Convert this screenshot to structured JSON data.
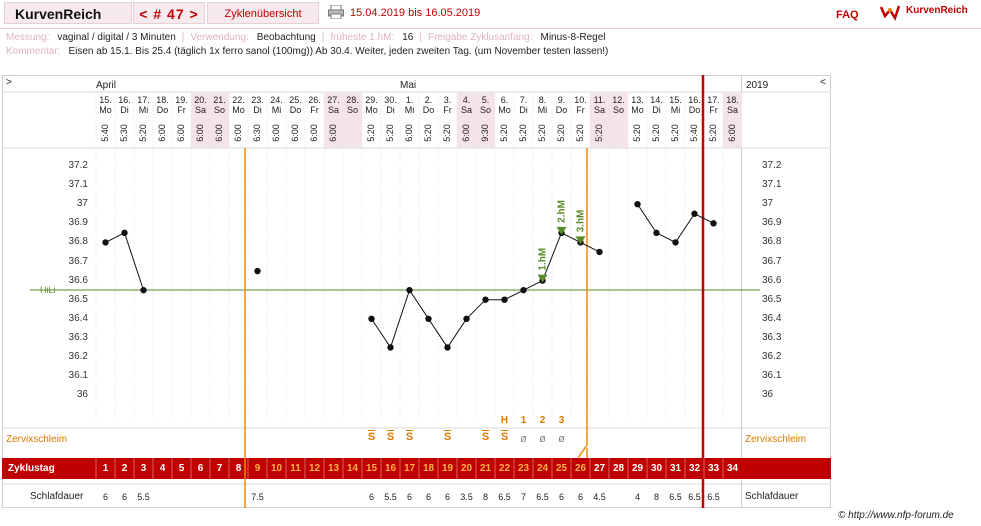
{
  "header": {
    "brand": "KurvenReich",
    "nav": "< # 47 >",
    "overview": "Zyklenübersicht",
    "date_range": "15.04.2019 bis 16.05.2019",
    "faq": "FAQ",
    "logo_text": "KurvenReich"
  },
  "info": {
    "messung_label": "Messung:",
    "messung_value": "vaginal / digital / 3 Minuten",
    "verwendung_label": "Verwendung:",
    "verwendung_value": "Beobachtung",
    "fhm_label": "früheste 1.hM:",
    "fhm_value": "16",
    "freigabe_label": "Freigabe Zyklusanfang:",
    "freigabe_value": "Minus-8-Regel",
    "kommentar_label": "Kommentar:",
    "kommentar_value": "Eisen ab 15.1. Bis 25.4 (täglich 1x ferro sanol (100mg)) Ab 30.4. Weiter, jeden zweiten Tag. (um November testen lassen!)"
  },
  "chart": {
    "nav_left": ">",
    "nav_right": "<",
    "month_april": "April",
    "month_mai": "Mai",
    "year": "2019",
    "hili_label": "HiLi",
    "cervix_label": "Zervixschleim",
    "cervix_label_right": "Zervixschleim",
    "cycle_label": "Zyklustag",
    "sleep_label": "Schlafdauer",
    "sleep_label_right": "Schlafdauer",
    "copyright": "© http://www.nfp-forum.de",
    "hm_labels": [
      "1.hM",
      "2.hM",
      "3.hM"
    ],
    "days": [
      {
        "date": "15.",
        "dow": "Mo",
        "time": "5:40",
        "temp": 36.8,
        "cd": "1",
        "sleep": "6",
        "cx": ""
      },
      {
        "date": "16.",
        "dow": "Di",
        "time": "5:30",
        "temp": 36.85,
        "cd": "2",
        "sleep": "6",
        "cx": ""
      },
      {
        "date": "17.",
        "dow": "Mi",
        "time": "5:20",
        "temp": 36.55,
        "cd": "3",
        "sleep": "5.5",
        "cx": ""
      },
      {
        "date": "18.",
        "dow": "Do",
        "time": "6:00",
        "temp": null,
        "cd": "4",
        "sleep": "",
        "cx": ""
      },
      {
        "date": "19.",
        "dow": "Fr",
        "time": "6:00",
        "temp": null,
        "cd": "5",
        "sleep": "",
        "cx": ""
      },
      {
        "date": "20.",
        "dow": "Sa",
        "time": "6:00",
        "temp": null,
        "cd": "6",
        "sleep": "",
        "cx": ""
      },
      {
        "date": "21.",
        "dow": "So",
        "time": "6:00",
        "temp": null,
        "cd": "7",
        "sleep": "",
        "cx": ""
      },
      {
        "date": "22.",
        "dow": "Mo",
        "time": "6:00",
        "temp": null,
        "cd": "8",
        "sleep": "",
        "cx": ""
      },
      {
        "date": "23.",
        "dow": "Di",
        "time": "6:30",
        "temp": 36.65,
        "cd": "9",
        "sleep": "7.5",
        "cx": ""
      },
      {
        "date": "24.",
        "dow": "Mi",
        "time": "6:00",
        "temp": null,
        "cd": "10",
        "sleep": "",
        "cx": ""
      },
      {
        "date": "25.",
        "dow": "Do",
        "time": "6:00",
        "temp": null,
        "cd": "11",
        "sleep": "",
        "cx": ""
      },
      {
        "date": "26.",
        "dow": "Fr",
        "time": "6:00",
        "temp": null,
        "cd": "12",
        "sleep": "",
        "cx": ""
      },
      {
        "date": "27.",
        "dow": "Sa",
        "time": "6:00",
        "temp": null,
        "cd": "13",
        "sleep": "",
        "cx": ""
      },
      {
        "date": "28.",
        "dow": "So",
        "time": "",
        "temp": null,
        "cd": "14",
        "sleep": "",
        "cx": ""
      },
      {
        "date": "29.",
        "dow": "Mo",
        "time": "5:20",
        "temp": 36.4,
        "cd": "15",
        "sleep": "6",
        "cx": "S"
      },
      {
        "date": "30.",
        "dow": "Di",
        "time": "5:20",
        "temp": 36.25,
        "cd": "16",
        "sleep": "5.5",
        "cx": "S"
      },
      {
        "date": "1.",
        "dow": "Mi",
        "time": "6:00",
        "temp": 36.55,
        "cd": "17",
        "sleep": "6",
        "cx": "S"
      },
      {
        "date": "2.",
        "dow": "Do",
        "time": "5:20",
        "temp": 36.4,
        "cd": "18",
        "sleep": "6",
        "cx": ""
      },
      {
        "date": "3.",
        "dow": "Fr",
        "time": "5:20",
        "temp": 36.25,
        "cd": "19",
        "sleep": "6",
        "cx": "S"
      },
      {
        "date": "4.",
        "dow": "Sa",
        "time": "6:00",
        "temp": 36.4,
        "cd": "20",
        "sleep": "3.5",
        "cx": ""
      },
      {
        "date": "5.",
        "dow": "So",
        "time": "9:30",
        "temp": 36.5,
        "cd": "21",
        "sleep": "8",
        "cx": "S"
      },
      {
        "date": "6.",
        "dow": "Mo",
        "time": "5:20",
        "temp": 36.5,
        "cd": "22",
        "sleep": "6.5",
        "cx": "S"
      },
      {
        "date": "7.",
        "dow": "Di",
        "time": "5:20",
        "temp": 36.55,
        "cd": "23",
        "sleep": "7",
        "cx": "ø"
      },
      {
        "date": "8.",
        "dow": "Mi",
        "time": "5:20",
        "temp": 36.6,
        "cd": "24",
        "sleep": "6.5",
        "cx": "ø"
      },
      {
        "date": "9.",
        "dow": "Do",
        "time": "5:20",
        "temp": 36.85,
        "cd": "25",
        "sleep": "6",
        "cx": "ø"
      },
      {
        "date": "10.",
        "dow": "Fr",
        "time": "5:20",
        "temp": 36.8,
        "cd": "26",
        "sleep": "6",
        "cx": ""
      },
      {
        "date": "11.",
        "dow": "Sa",
        "time": "5:20",
        "temp": 36.75,
        "cd": "27",
        "sleep": "4.5",
        "cx": ""
      },
      {
        "date": "12.",
        "dow": "So",
        "time": "",
        "temp": null,
        "cd": "28",
        "sleep": "",
        "cx": ""
      },
      {
        "date": "13.",
        "dow": "Mo",
        "time": "5:20",
        "temp": 37.0,
        "cd": "29",
        "sleep": "4",
        "cx": ""
      },
      {
        "date": "14.",
        "dow": "Di",
        "time": "5:20",
        "temp": 36.85,
        "cd": "30",
        "sleep": "8",
        "cx": ""
      },
      {
        "date": "15.",
        "dow": "Mi",
        "time": "5:20",
        "temp": 36.8,
        "cd": "31",
        "sleep": "6.5",
        "cx": ""
      },
      {
        "date": "16.",
        "dow": "Do",
        "time": "5:40",
        "temp": 36.95,
        "cd": "32",
        "sleep": "6.5",
        "cx": ""
      },
      {
        "date": "17.",
        "dow": "Fr",
        "time": "5:20",
        "temp": 36.9,
        "cd": "33",
        "sleep": "6.5",
        "cx": ""
      },
      {
        "date": "18.",
        "dow": "Sa",
        "time": "6:00",
        "temp": null,
        "cd": "34",
        "sleep": "",
        "cx": ""
      }
    ],
    "hm_marks": [
      "H",
      "1",
      "2",
      "3"
    ],
    "y_ticks": [
      "37.2",
      "37.1",
      "37",
      "36.9",
      "36.8",
      "36.7",
      "36.6",
      "36.5",
      "36.4",
      "36.3",
      "36.2",
      "36.1",
      "36"
    ],
    "colors": {
      "red": "#c00000",
      "orange": "#f08a00",
      "green": "#5a8a2a",
      "pink": "#f7eaee",
      "weekend": "#f4e3e8"
    }
  }
}
